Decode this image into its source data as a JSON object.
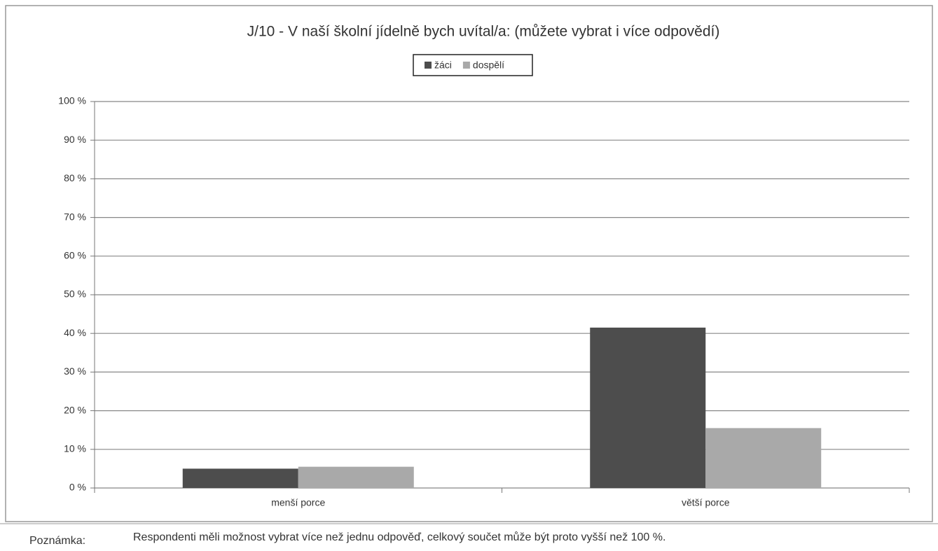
{
  "chart_data": {
    "type": "bar",
    "title": "J/10 - V naší školní jídelně bych uvítal/a: (můžete vybrat i více odpovědí)",
    "categories": [
      "menší porce",
      "větší porce"
    ],
    "series": [
      {
        "name": "žáci",
        "color": "#4d4d4d",
        "values": [
          5,
          41.5
        ]
      },
      {
        "name": "dospělí",
        "color": "#a9a9a9",
        "values": [
          5.5,
          15.5
        ]
      }
    ],
    "ylim": [
      0,
      100
    ],
    "yticks": [
      {
        "value": 0,
        "label": "0 %"
      },
      {
        "value": 10,
        "label": "10 %"
      },
      {
        "value": 20,
        "label": "20 %"
      },
      {
        "value": 30,
        "label": "30 %"
      },
      {
        "value": 40,
        "label": "40 %"
      },
      {
        "value": 50,
        "label": "50 %"
      },
      {
        "value": 60,
        "label": "60 %"
      },
      {
        "value": 70,
        "label": "70 %"
      },
      {
        "value": 80,
        "label": "80 %"
      },
      {
        "value": 90,
        "label": "90 %"
      },
      {
        "value": 100,
        "label": "100 %"
      }
    ],
    "grid": true,
    "legend": "top"
  },
  "note": {
    "label": "Poznámka:",
    "text": "Respondenti měli možnost vybrat více než jednu odpověď, celkový součet může být proto vyšší než 100 %."
  }
}
